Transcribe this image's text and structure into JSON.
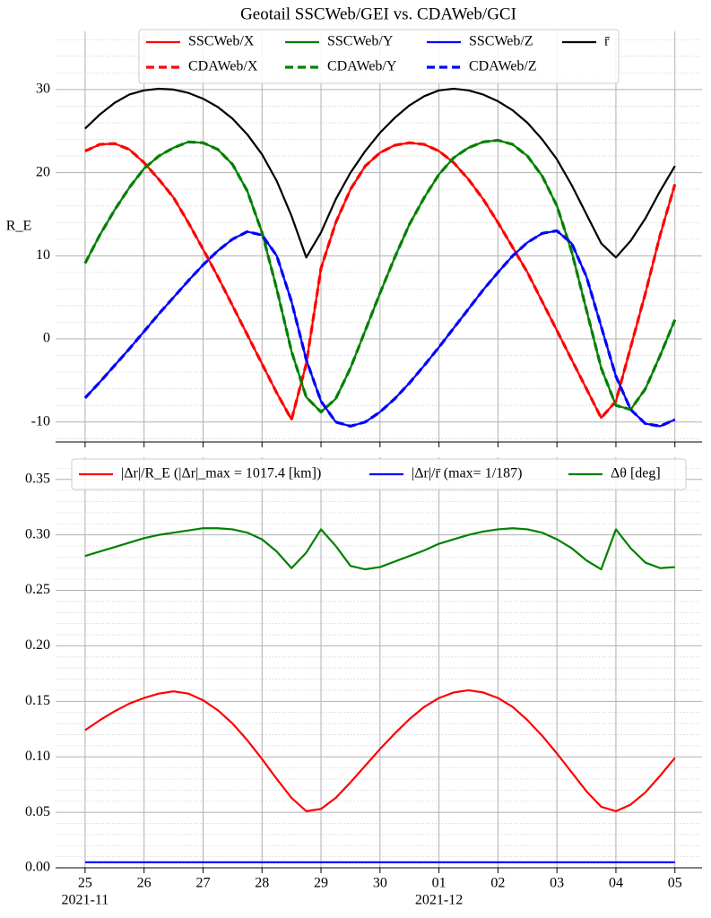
{
  "chart_data": [
    {
      "type": "line",
      "title": "Geotail SSCWeb/GEI vs. CDAWeb/GCI",
      "ylabel": "R_E",
      "x": [
        0,
        0.25,
        0.5,
        0.75,
        1,
        1.25,
        1.5,
        1.75,
        2,
        2.25,
        2.5,
        2.75,
        3,
        3.25,
        3.5,
        3.75,
        4,
        4.25,
        4.5,
        4.75,
        5,
        5.25,
        5.5,
        5.75,
        6,
        6.25,
        6.5,
        6.75,
        7,
        7.25,
        7.5,
        7.75,
        8,
        8.25,
        8.5,
        8.75,
        9,
        9.25,
        9.5,
        9.75,
        10
      ],
      "xlim": [
        -0.5,
        10.46
      ],
      "xticks": [
        0,
        1,
        2,
        3,
        4,
        5,
        6,
        7,
        8,
        9,
        10
      ],
      "ylim": [
        -12.4,
        37
      ],
      "yticks": [
        -10,
        0,
        10,
        20,
        30
      ],
      "yminorticks": [
        -12,
        -8,
        -6,
        -4,
        -2,
        2,
        4,
        6,
        8,
        12,
        14,
        16,
        18,
        22,
        24,
        26,
        28,
        32,
        34,
        36
      ],
      "grid": true,
      "legend_ncol": 4,
      "series": [
        {
          "name": "SSCWeb/X",
          "color": "#ff0000",
          "values": [
            22.6,
            23.4,
            23.5,
            22.8,
            21.2,
            19.2,
            17.0,
            14.0,
            10.8,
            7.5,
            4.0,
            0.5,
            -3.0,
            -6.5,
            -9.7,
            -3.0,
            8.5,
            14.0,
            18.0,
            20.8,
            22.4,
            23.3,
            23.6,
            23.4,
            22.6,
            21.2,
            19.2,
            16.8,
            14.0,
            11.0,
            8.0,
            4.5,
            1.0,
            -2.5,
            -6.0,
            -9.5,
            -7.5,
            -1.0,
            5.5,
            12.5,
            18.6
          ]
        },
        {
          "name": "SSCWeb/Y",
          "color": "#008000",
          "values": [
            9.1,
            12.5,
            15.5,
            18.2,
            20.5,
            22.0,
            23.0,
            23.7,
            23.6,
            22.8,
            21.0,
            17.8,
            12.8,
            6.0,
            -1.5,
            -7.0,
            -8.8,
            -7.2,
            -3.5,
            1.0,
            5.5,
            9.8,
            13.8,
            17.0,
            19.8,
            21.8,
            23.0,
            23.7,
            23.9,
            23.4,
            22.0,
            19.6,
            16.0,
            10.5,
            3.5,
            -3.5,
            -8.0,
            -8.5,
            -6.0,
            -2.0,
            2.3
          ]
        },
        {
          "name": "SSCWeb/Z",
          "color": "#0000ff",
          "values": [
            -7.1,
            -5.2,
            -3.2,
            -1.2,
            0.9,
            3.0,
            5.0,
            7.0,
            8.9,
            10.6,
            12.0,
            12.9,
            12.5,
            10.0,
            4.5,
            -2.5,
            -7.5,
            -10.0,
            -10.5,
            -10.0,
            -8.8,
            -7.2,
            -5.3,
            -3.2,
            -1.0,
            1.3,
            3.6,
            5.9,
            8.0,
            10.0,
            11.6,
            12.7,
            13.0,
            11.5,
            7.5,
            1.5,
            -4.5,
            -8.5,
            -10.2,
            -10.5,
            -9.7
          ]
        },
        {
          "name": "r̄",
          "color": "#000000",
          "values": [
            25.3,
            27.0,
            28.4,
            29.4,
            29.9,
            30.1,
            30.0,
            29.6,
            28.9,
            27.9,
            26.5,
            24.6,
            22.2,
            19.0,
            14.8,
            9.8,
            12.8,
            16.8,
            20.0,
            22.6,
            24.8,
            26.6,
            28.1,
            29.2,
            29.9,
            30.1,
            29.9,
            29.4,
            28.6,
            27.5,
            26.0,
            24.0,
            21.6,
            18.5,
            15.0,
            11.5,
            9.8,
            11.8,
            14.5,
            17.8,
            20.8
          ]
        },
        {
          "name": "CDAWeb/X",
          "color": "#ff0000",
          "dashed": true,
          "values": [
            22.6,
            23.4,
            23.5,
            22.8,
            21.2,
            19.2,
            17.0,
            14.0,
            10.8,
            7.5,
            4.0,
            0.5,
            -3.0,
            -6.5,
            -9.7,
            -3.0,
            8.5,
            14.0,
            18.0,
            20.8,
            22.4,
            23.3,
            23.6,
            23.4,
            22.6,
            21.2,
            19.2,
            16.8,
            14.0,
            11.0,
            8.0,
            4.5,
            1.0,
            -2.5,
            -6.0,
            -9.5,
            -7.5,
            -1.0,
            5.5,
            12.5,
            18.6
          ]
        },
        {
          "name": "CDAWeb/Y",
          "color": "#008000",
          "dashed": true,
          "values": [
            9.1,
            12.5,
            15.5,
            18.2,
            20.5,
            22.0,
            23.0,
            23.7,
            23.6,
            22.8,
            21.0,
            17.8,
            12.8,
            6.0,
            -1.5,
            -7.0,
            -8.8,
            -7.2,
            -3.5,
            1.0,
            5.5,
            9.8,
            13.8,
            17.0,
            19.8,
            21.8,
            23.0,
            23.7,
            23.9,
            23.4,
            22.0,
            19.6,
            16.0,
            10.5,
            3.5,
            -3.5,
            -8.0,
            -8.5,
            -6.0,
            -2.0,
            2.3
          ]
        },
        {
          "name": "CDAWeb/Z",
          "color": "#0000ff",
          "dashed": true,
          "values": [
            -7.1,
            -5.2,
            -3.2,
            -1.2,
            0.9,
            3.0,
            5.0,
            7.0,
            8.9,
            10.6,
            12.0,
            12.9,
            12.5,
            10.0,
            4.5,
            -2.5,
            -7.5,
            -10.0,
            -10.5,
            -10.0,
            -8.8,
            -7.2,
            -5.3,
            -3.2,
            -1.0,
            1.3,
            3.6,
            5.9,
            8.0,
            10.0,
            11.6,
            12.7,
            13.0,
            11.5,
            7.5,
            1.5,
            -4.5,
            -8.5,
            -10.2,
            -10.5,
            -9.7
          ]
        }
      ]
    },
    {
      "type": "line",
      "x": [
        0,
        0.25,
        0.5,
        0.75,
        1,
        1.25,
        1.5,
        1.75,
        2,
        2.25,
        2.5,
        2.75,
        3,
        3.25,
        3.5,
        3.75,
        4,
        4.25,
        4.5,
        4.75,
        5,
        5.25,
        5.5,
        5.75,
        6,
        6.25,
        6.5,
        6.75,
        7,
        7.25,
        7.5,
        7.75,
        8,
        8.25,
        8.5,
        8.75,
        9,
        9.25,
        9.5,
        9.75,
        10
      ],
      "xlim": [
        -0.5,
        10.46
      ],
      "xticks": [
        {
          "value": 0,
          "label": "25"
        },
        {
          "value": 1,
          "label": "26"
        },
        {
          "value": 2,
          "label": "27"
        },
        {
          "value": 3,
          "label": "28"
        },
        {
          "value": 4,
          "label": "29"
        },
        {
          "value": 5,
          "label": "30"
        },
        {
          "value": 6,
          "label": "01"
        },
        {
          "value": 7,
          "label": "02"
        },
        {
          "value": 8,
          "label": "03"
        },
        {
          "value": 9,
          "label": "04"
        },
        {
          "value": 10,
          "label": "05"
        }
      ],
      "month_labels": [
        {
          "value": 0,
          "label": "2021-11"
        },
        {
          "value": 6,
          "label": "2021-12"
        }
      ],
      "ylim": [
        0,
        0.37
      ],
      "yticks": [
        {
          "value": 0,
          "label": "0.00"
        },
        {
          "value": 0.05,
          "label": "0.05"
        },
        {
          "value": 0.1,
          "label": "0.10"
        },
        {
          "value": 0.15,
          "label": "0.15"
        },
        {
          "value": 0.2,
          "label": "0.20"
        },
        {
          "value": 0.25,
          "label": "0.25"
        },
        {
          "value": 0.3,
          "label": "0.30"
        },
        {
          "value": 0.35,
          "label": "0.35"
        }
      ],
      "yminorticks": [
        0.01,
        0.02,
        0.03,
        0.04,
        0.06,
        0.07,
        0.08,
        0.09,
        0.11,
        0.12,
        0.13,
        0.14,
        0.16,
        0.17,
        0.18,
        0.19,
        0.21,
        0.22,
        0.23,
        0.24,
        0.26,
        0.27,
        0.28,
        0.29,
        0.31,
        0.32,
        0.33,
        0.34,
        0.36
      ],
      "grid": true,
      "legend_ncol": 3,
      "series": [
        {
          "name": "|Δr|/R_E (|Δr|_max = 1017.4 [km])",
          "color": "#ff0000",
          "values": [
            0.124,
            0.133,
            0.141,
            0.148,
            0.153,
            0.157,
            0.159,
            0.157,
            0.151,
            0.142,
            0.13,
            0.115,
            0.098,
            0.08,
            0.063,
            0.051,
            0.053,
            0.063,
            0.077,
            0.092,
            0.107,
            0.121,
            0.134,
            0.145,
            0.153,
            0.158,
            0.16,
            0.158,
            0.153,
            0.145,
            0.133,
            0.119,
            0.103,
            0.086,
            0.069,
            0.055,
            0.051,
            0.057,
            0.068,
            0.083,
            0.099
          ]
        },
        {
          "name": "|Δr|/r̄  (max= 1/187)",
          "color": "#0000ff",
          "values": [
            0.005,
            0.005,
            0.005,
            0.005,
            0.005,
            0.005,
            0.005,
            0.005,
            0.005,
            0.005,
            0.005,
            0.005,
            0.005,
            0.005,
            0.005,
            0.005,
            0.005,
            0.005,
            0.005,
            0.005,
            0.005,
            0.005,
            0.005,
            0.005,
            0.005,
            0.005,
            0.005,
            0.005,
            0.005,
            0.005,
            0.005,
            0.005,
            0.005,
            0.005,
            0.005,
            0.005,
            0.005,
            0.005,
            0.005,
            0.005,
            0.005
          ]
        },
        {
          "name": "Δθ [deg]",
          "color": "#008000",
          "values": [
            0.281,
            0.285,
            0.289,
            0.293,
            0.297,
            0.3,
            0.302,
            0.304,
            0.306,
            0.306,
            0.305,
            0.302,
            0.296,
            0.285,
            0.27,
            0.284,
            0.305,
            0.29,
            0.272,
            0.269,
            0.271,
            0.276,
            0.281,
            0.286,
            0.292,
            0.296,
            0.3,
            0.303,
            0.305,
            0.306,
            0.305,
            0.302,
            0.296,
            0.288,
            0.277,
            0.269,
            0.305,
            0.288,
            0.275,
            0.27,
            0.271
          ]
        }
      ]
    }
  ]
}
